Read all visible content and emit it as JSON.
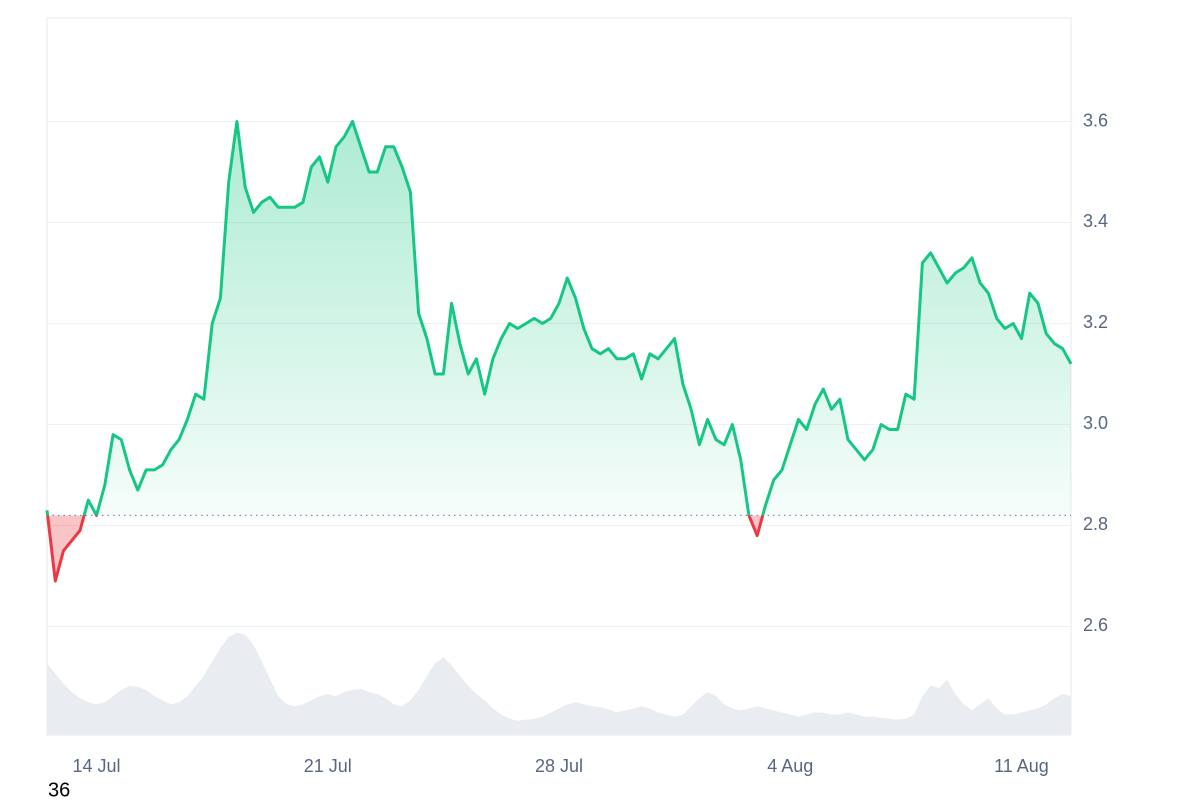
{
  "chart_data": {
    "type": "line",
    "x": [
      -1.5,
      -1.25,
      -1,
      -0.75,
      -0.5,
      -0.25,
      0,
      0.25,
      0.5,
      0.75,
      1,
      1.25,
      1.5,
      1.75,
      2,
      2.25,
      2.5,
      2.75,
      3,
      3.25,
      3.5,
      3.75,
      4,
      4.25,
      4.5,
      4.75,
      5,
      5.25,
      5.5,
      5.75,
      6,
      6.25,
      6.5,
      6.75,
      7,
      7.25,
      7.5,
      7.75,
      8,
      8.25,
      8.5,
      8.75,
      9,
      9.25,
      9.5,
      9.75,
      10,
      10.25,
      10.5,
      10.75,
      11,
      11.25,
      11.5,
      11.75,
      12,
      12.25,
      12.5,
      12.75,
      13,
      13.25,
      13.5,
      13.75,
      14,
      14.25,
      14.5,
      14.75,
      15,
      15.25,
      15.5,
      15.75,
      16,
      16.25,
      16.5,
      16.75,
      17,
      17.25,
      17.5,
      17.75,
      18,
      18.25,
      18.5,
      18.75,
      19,
      19.25,
      19.5,
      19.75,
      20,
      20.25,
      20.5,
      20.75,
      21,
      21.25,
      21.5,
      21.75,
      22,
      22.25,
      22.5,
      22.75,
      23,
      23.25,
      23.5,
      23.75,
      24,
      24.25,
      24.5,
      24.75,
      25,
      25.25,
      25.5,
      25.75,
      26,
      26.25,
      26.5,
      26.75,
      27,
      27.25,
      27.5,
      27.75,
      28,
      28.25,
      28.5,
      28.75,
      29,
      29.25,
      29.5
    ],
    "series": [
      {
        "color": "#16c784",
        "values": [
          2.83,
          2.69,
          2.75,
          2.77,
          2.79,
          2.85,
          2.82,
          2.88,
          2.98,
          2.97,
          2.91,
          2.87,
          2.91,
          2.91,
          2.92,
          2.95,
          2.97,
          3.01,
          3.06,
          3.05,
          3.2,
          3.25,
          3.48,
          3.6,
          3.47,
          3.42,
          3.44,
          3.45,
          3.43,
          3.43,
          3.43,
          3.44,
          3.51,
          3.53,
          3.48,
          3.55,
          3.57,
          3.6,
          3.55,
          3.5,
          3.5,
          3.55,
          3.55,
          3.51,
          3.46,
          3.22,
          3.17,
          3.1,
          3.1,
          3.24,
          3.16,
          3.1,
          3.13,
          3.06,
          3.13,
          3.17,
          3.2,
          3.19,
          3.2,
          3.21,
          3.2,
          3.21,
          3.24,
          3.29,
          3.25,
          3.19,
          3.15,
          3.14,
          3.15,
          3.13,
          3.13,
          3.14,
          3.09,
          3.14,
          3.13,
          3.15,
          3.17,
          3.08,
          3.03,
          2.96,
          3.01,
          2.97,
          2.96,
          3.0,
          2.93,
          2.82,
          2.78,
          2.84,
          2.89,
          2.91,
          2.96,
          3.01,
          2.99,
          3.04,
          3.07,
          3.03,
          3.05,
          2.97,
          2.95,
          2.93,
          2.95,
          3.0,
          2.99,
          2.99,
          3.06,
          3.05,
          3.32,
          3.34,
          3.31,
          3.28,
          3.3,
          3.31,
          3.33,
          3.28,
          3.26,
          3.21,
          3.19,
          3.2,
          3.17,
          3.26,
          3.24,
          3.18,
          3.16,
          3.15,
          3.12
        ]
      },
      {
        "axis": "y2",
        "color": "#e9edf2",
        "values": [
          70,
          60,
          50,
          42,
          36,
          32,
          30,
          32,
          38,
          44,
          48,
          47,
          44,
          38,
          34,
          30,
          32,
          38,
          48,
          58,
          72,
          85,
          96,
          100,
          98,
          88,
          72,
          55,
          38,
          30,
          28,
          30,
          34,
          38,
          40,
          38,
          42,
          44,
          45,
          42,
          40,
          36,
          30,
          28,
          34,
          44,
          58,
          70,
          76,
          68,
          58,
          48,
          40,
          34,
          26,
          20,
          16,
          14,
          15,
          16,
          18,
          22,
          26,
          30,
          32,
          30,
          28,
          27,
          25,
          22,
          24,
          26,
          28,
          26,
          22,
          20,
          18,
          20,
          28,
          36,
          42,
          38,
          30,
          26,
          24,
          26,
          28,
          26,
          24,
          22,
          20,
          18,
          20,
          22,
          22,
          20,
          20,
          22,
          20,
          18,
          18,
          17,
          16,
          15,
          16,
          20,
          38,
          48,
          46,
          54,
          40,
          30,
          24,
          30,
          36,
          26,
          20,
          20,
          22,
          24,
          26,
          30,
          36,
          40,
          38
        ]
      }
    ],
    "baseline": 2.82,
    "below_color": "#ea3943",
    "xlim": [
      -1.5,
      29.5
    ],
    "xticks": [
      {
        "value": 0,
        "label": "14 Jul"
      },
      {
        "value": 7,
        "label": "21 Jul"
      },
      {
        "value": 14,
        "label": "28 Jul"
      },
      {
        "value": 21,
        "label": "4 Aug"
      },
      {
        "value": 28,
        "label": "11 Aug"
      }
    ],
    "ylim": [
      2.385,
      3.805
    ],
    "yticks": [
      {
        "value": 2.6,
        "label": "2.6"
      },
      {
        "value": 2.8,
        "label": "2.8"
      },
      {
        "value": 3.0,
        "label": "3.0"
      },
      {
        "value": 3.2,
        "label": "3.2"
      },
      {
        "value": 3.4,
        "label": "3.4"
      },
      {
        "value": 3.6,
        "label": "3.6"
      }
    ],
    "y2lim": [
      0,
      700
    ],
    "grid": true,
    "footer_text": "36"
  }
}
